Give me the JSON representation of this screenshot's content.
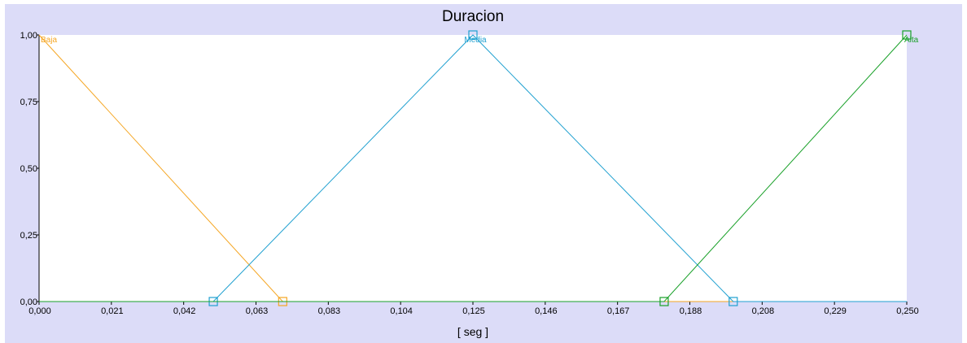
{
  "chart_data": {
    "type": "line",
    "title": "Duracion",
    "xlabel": "[  seg ]",
    "ylabel": "",
    "xlim": [
      0,
      0.25
    ],
    "ylim": [
      0,
      1
    ],
    "x_ticks": [
      "0,000",
      "0,021",
      "0,042",
      "0,063",
      "0,083",
      "0,104",
      "0,125",
      "0,146",
      "0,167",
      "0,188",
      "0,208",
      "0,229",
      "0,250"
    ],
    "y_ticks": [
      "0,00",
      "0,25",
      "0,50",
      "0,75",
      "1,00"
    ],
    "series": [
      {
        "name": "Baja",
        "color": "#f5a623",
        "x": [
          0,
          0.0702,
          0.25
        ],
        "y": [
          1,
          0,
          0
        ],
        "markers": [
          0.0702
        ]
      },
      {
        "name": "Media",
        "color": "#1fa0d0",
        "x": [
          0,
          0.0502,
          0.125,
          0.2,
          0.25
        ],
        "y": [
          0,
          0,
          1,
          0,
          0
        ],
        "markers": [
          0.0502,
          0.125,
          0.2
        ]
      },
      {
        "name": "Alta",
        "color": "#18a028",
        "x": [
          0,
          0.1801,
          0.25
        ],
        "y": [
          0,
          0,
          1
        ],
        "markers": [
          0.1801,
          0.25
        ]
      }
    ],
    "grid": false,
    "legend": "inline labels at series peaks"
  }
}
